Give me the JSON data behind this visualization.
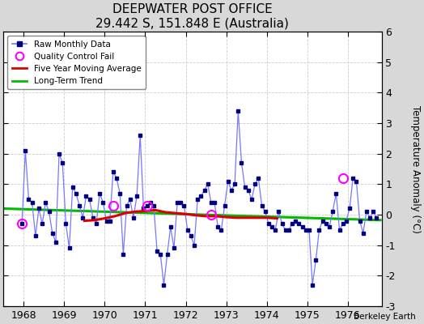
{
  "title": "DEEPWATER POST OFFICE",
  "subtitle": "29.442 S, 151.848 E (Australia)",
  "ylabel": "Temperature Anomaly (°C)",
  "credit": "Berkeley Earth",
  "ylim": [
    -3,
    6
  ],
  "yticks": [
    -3,
    -2,
    -1,
    0,
    1,
    2,
    3,
    4,
    5,
    6
  ],
  "xlim": [
    1967.5,
    1976.83
  ],
  "xticks": [
    1968,
    1969,
    1970,
    1971,
    1972,
    1973,
    1974,
    1975,
    1976
  ],
  "background_color": "#d8d8d8",
  "plot_background": "#ffffff",
  "raw_line_color": "#7777ff",
  "raw_marker_color": "#000080",
  "ma_color": "#dd0000",
  "trend_color": "#00bb00",
  "qc_color": "#ff00ff",
  "months": [
    1967.958,
    1968.042,
    1968.125,
    1968.208,
    1968.292,
    1968.375,
    1968.458,
    1968.542,
    1968.625,
    1968.708,
    1968.792,
    1968.875,
    1968.958,
    1969.042,
    1969.125,
    1969.208,
    1969.292,
    1969.375,
    1969.458,
    1969.542,
    1969.625,
    1969.708,
    1969.792,
    1969.875,
    1969.958,
    1970.042,
    1970.125,
    1970.208,
    1970.292,
    1970.375,
    1970.458,
    1970.542,
    1970.625,
    1970.708,
    1970.792,
    1970.875,
    1970.958,
    1971.042,
    1971.125,
    1971.208,
    1971.292,
    1971.375,
    1971.458,
    1971.542,
    1971.625,
    1971.708,
    1971.792,
    1971.875,
    1971.958,
    1972.042,
    1972.125,
    1972.208,
    1972.292,
    1972.375,
    1972.458,
    1972.542,
    1972.625,
    1972.708,
    1972.792,
    1972.875,
    1972.958,
    1973.042,
    1973.125,
    1973.208,
    1973.292,
    1973.375,
    1973.458,
    1973.542,
    1973.625,
    1973.708,
    1973.792,
    1973.875,
    1973.958,
    1974.042,
    1974.125,
    1974.208,
    1974.292,
    1974.375,
    1974.458,
    1974.542,
    1974.625,
    1974.708,
    1974.792,
    1974.875,
    1974.958,
    1975.042,
    1975.125,
    1975.208,
    1975.292,
    1975.375,
    1975.458,
    1975.542,
    1975.625,
    1975.708,
    1975.792,
    1975.875,
    1975.958,
    1976.042,
    1976.125,
    1976.208,
    1976.292,
    1976.375,
    1976.458,
    1976.542,
    1976.625,
    1976.708
  ],
  "values": [
    -0.3,
    2.1,
    0.5,
    0.4,
    -0.7,
    0.2,
    -0.3,
    0.4,
    0.1,
    -0.6,
    -0.9,
    2.0,
    1.7,
    -0.3,
    -1.1,
    0.9,
    0.7,
    0.3,
    -0.1,
    0.6,
    0.5,
    -0.1,
    -0.3,
    0.7,
    0.4,
    -0.2,
    -0.2,
    1.4,
    1.2,
    0.7,
    -1.3,
    0.3,
    0.5,
    -0.1,
    0.6,
    2.6,
    0.2,
    0.3,
    0.4,
    0.3,
    -1.2,
    -1.3,
    -2.3,
    -1.3,
    -0.4,
    -1.1,
    0.4,
    0.4,
    0.3,
    -0.5,
    -0.7,
    -1.0,
    0.5,
    0.6,
    0.8,
    1.0,
    0.4,
    0.4,
    -0.4,
    -0.5,
    0.3,
    1.1,
    0.8,
    1.0,
    3.4,
    1.7,
    0.9,
    0.8,
    0.5,
    1.0,
    1.2,
    0.3,
    0.1,
    -0.3,
    -0.4,
    -0.5,
    0.1,
    -0.3,
    -0.5,
    -0.5,
    -0.3,
    -0.2,
    -0.3,
    -0.4,
    -0.5,
    -0.5,
    -2.3,
    -1.5,
    -0.5,
    -0.2,
    -0.3,
    -0.4,
    0.1,
    0.7,
    -0.5,
    -0.3,
    -0.2,
    0.2,
    1.2,
    1.1,
    -0.2,
    -0.6,
    0.1,
    -0.1,
    0.1,
    -0.1
  ],
  "qc_x": [
    1967.958,
    1970.208,
    1971.042,
    1972.625,
    1975.875
  ],
  "qc_y": [
    -0.3,
    0.3,
    0.3,
    0.0,
    1.2
  ],
  "ma_x": [
    1969.5,
    1969.75,
    1970.0,
    1970.25,
    1970.5,
    1970.75,
    1971.0,
    1971.25,
    1971.5,
    1971.75,
    1972.0,
    1972.25,
    1972.5,
    1972.75,
    1973.0,
    1973.25,
    1973.5,
    1973.75,
    1974.0,
    1974.25
  ],
  "ma_y": [
    -0.2,
    -0.18,
    -0.12,
    -0.05,
    0.05,
    0.1,
    0.12,
    0.15,
    0.08,
    0.05,
    0.02,
    -0.02,
    -0.05,
    -0.05,
    -0.08,
    -0.1,
    -0.1,
    -0.1,
    -0.1,
    -0.12
  ],
  "trend_x": [
    1967.5,
    1976.83
  ],
  "trend_y": [
    0.2,
    -0.18
  ]
}
